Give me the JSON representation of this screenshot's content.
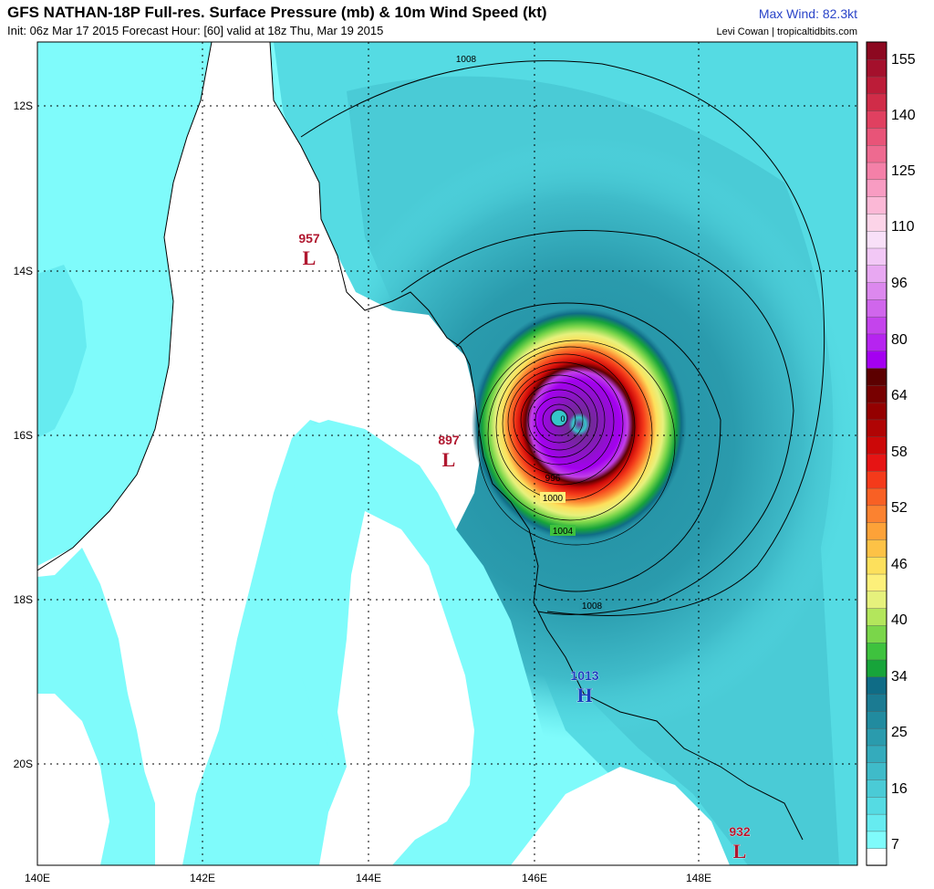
{
  "header": {
    "title": "GFS NATHAN-18P Full-res. Surface Pressure (mb) & 10m Wind Speed (kt)",
    "subtitle": "Init: 06z Mar 17 2015   Forecast Hour: [60]   valid at 18z Thu, Mar 19 2015",
    "max_wind": "Max Wind: 82.3kt",
    "credit": "Levi Cowan | tropicaltidbits.com"
  },
  "map": {
    "lon_labels": [
      "140E",
      "142E",
      "144E",
      "146E",
      "148E"
    ],
    "lat_labels": [
      "12S",
      "14S",
      "16S",
      "18S",
      "20S"
    ],
    "isobar_labels": [
      "1008",
      "996",
      "1000",
      "1004",
      "1008"
    ],
    "pressure_centers": [
      {
        "value": "957",
        "symbol": "L",
        "type": "low"
      },
      {
        "value": "897",
        "symbol": "L",
        "type": "low"
      },
      {
        "value": "1013",
        "symbol": "H",
        "type": "high"
      },
      {
        "value": "932",
        "symbol": "L",
        "type": "low"
      }
    ],
    "eye_label": "0"
  },
  "colorbar": {
    "unit": "kt",
    "labels": [
      "155",
      "140",
      "125",
      "110",
      "96",
      "80",
      "64",
      "58",
      "52",
      "46",
      "40",
      "34",
      "25",
      "16",
      "7"
    ],
    "colors": [
      "#ffffff",
      "#7ffbfb",
      "#66ebf0",
      "#55dbe3",
      "#4acbd6",
      "#3fbbc9",
      "#34abbc",
      "#2a9bad",
      "#218b9f",
      "#1b7b92",
      "#0f6c86",
      "#17a43a",
      "#3ec23e",
      "#7ad64a",
      "#b3e65c",
      "#e6f17c",
      "#fdf07a",
      "#fde05c",
      "#fdc246",
      "#fda238",
      "#fb8230",
      "#f86024",
      "#f43a1a",
      "#e61414",
      "#cc0808",
      "#b00404",
      "#940000",
      "#780000",
      "#5c0000",
      "#a400f0",
      "#b624f0",
      "#c444ec",
      "#d066ec",
      "#dc88ee",
      "#e8a8f2",
      "#f2c8f6",
      "#f8e0f8",
      "#fcd4e8",
      "#fbb8d6",
      "#f89cc2",
      "#f480a8",
      "#ee6a90",
      "#e85478",
      "#e04060",
      "#d02c48",
      "#bc1c38",
      "#a4102c",
      "#8c0820"
    ]
  }
}
